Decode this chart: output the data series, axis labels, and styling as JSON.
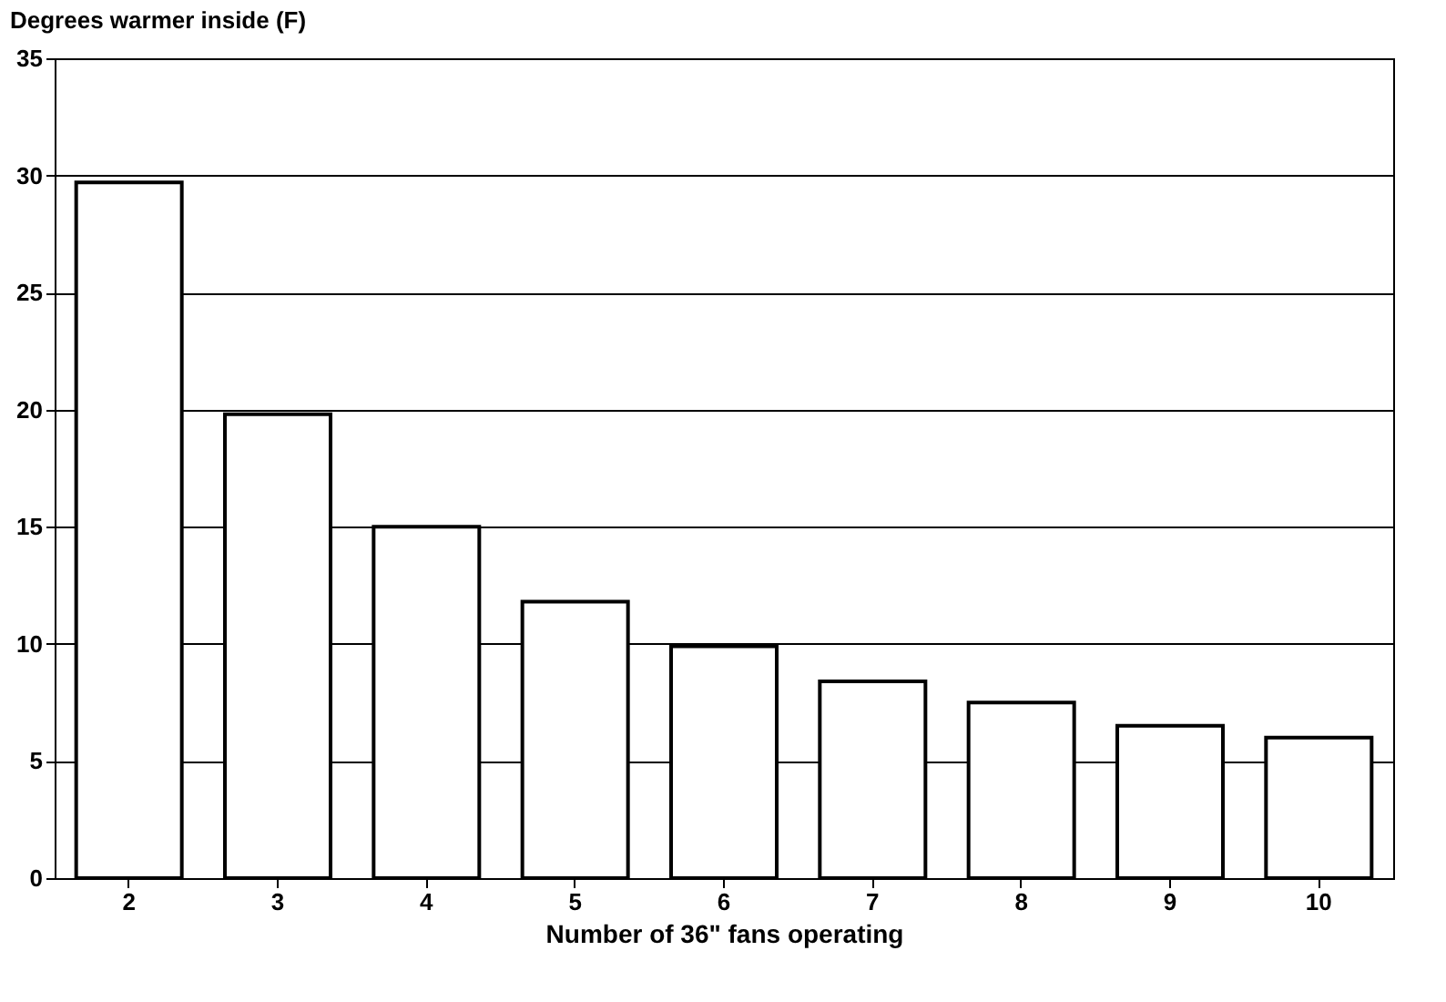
{
  "chart_data": {
    "type": "bar",
    "ylabel": "Degrees warmer inside (F)",
    "xlabel": "Number of 36\" fans operating",
    "categories": [
      "2",
      "3",
      "4",
      "5",
      "6",
      "7",
      "8",
      "9",
      "10"
    ],
    "values": [
      29.7,
      19.8,
      15.0,
      11.8,
      9.9,
      8.4,
      7.5,
      6.5,
      6.0
    ],
    "color": "#ffffff",
    "ylim": [
      0,
      35
    ],
    "yticks": [
      0,
      5,
      10,
      15,
      20,
      25,
      30,
      35
    ],
    "grid": "y"
  }
}
